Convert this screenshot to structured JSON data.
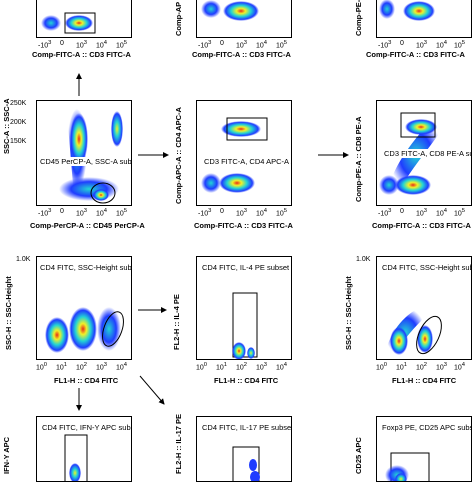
{
  "colors": {
    "density_low": "#1f3cff",
    "density_mid": "#22d4d4",
    "density_high": "#f1f127",
    "density_peak": "#e82a1a",
    "gate": "#000000"
  },
  "top_row": {
    "left": {
      "xlabel": "Comp-FITC-A :: CD3 FITC-A",
      "ylabel": "",
      "xticks": [
        "-10",
        "0",
        "10",
        "10",
        "10"
      ],
      "xtick_exps": [
        "3",
        "",
        "3",
        "4",
        "5"
      ]
    },
    "middle": {
      "xlabel": "Comp-FITC-A :: CD3 FITC-A",
      "ylabel": "Comp-AP",
      "xticks": [
        "-10",
        "0",
        "10",
        "10",
        "10"
      ],
      "xtick_exps": [
        "3",
        "",
        "3",
        "4",
        "5"
      ]
    },
    "right": {
      "xlabel": "Comp-FITC-A :: CD3 FITC-A",
      "ylabel": "Comp-PE-A",
      "xticks": [
        "-10",
        "0",
        "10",
        "10",
        "10"
      ],
      "xtick_exps": [
        "3",
        "",
        "3",
        "4",
        "5"
      ]
    }
  },
  "row2": {
    "left": {
      "subset": "CD45 PerCP-A, SSC-A subset",
      "xlabel": "Comp-PerCP-A :: CD45 PerCP-A",
      "ylabel": "SSC-A :: SSC-A",
      "yticks": [
        "250K",
        "200K",
        "150K",
        "100K",
        "50K",
        "0"
      ],
      "xticks": [
        "-10",
        "0",
        "10",
        "10",
        "10"
      ],
      "xtick_exps": [
        "3",
        "",
        "3",
        "4",
        "5"
      ]
    },
    "middle": {
      "subset": "CD3 FITC-A, CD4 APC-A subset",
      "xlabel": "Comp-FITC-A :: CD3 FITC-A",
      "ylabel": "Comp-APC-A :: CD4 APC-A",
      "xticks": [
        "-10",
        "0",
        "10",
        "10",
        "10"
      ],
      "xtick_exps": [
        "3",
        "",
        "3",
        "4",
        "5"
      ]
    },
    "right": {
      "subset": "CD3 FITC-A, CD8 PE-A subset",
      "xlabel": "Comp-FITC-A :: CD3 FITC-A",
      "ylabel": "Comp-PE-A :: CD8 PE-A",
      "xticks": [
        "-10",
        "0",
        "10",
        "10",
        "10"
      ],
      "xtick_exps": [
        "3",
        "",
        "3",
        "4",
        "5"
      ]
    }
  },
  "row3": {
    "left": {
      "subset": "CD4 FITC, SSC-Height subset",
      "xlabel": "FL1-H :: CD4 FITC",
      "ylabel": "SSC-H :: SSC-Height",
      "ytop": "1.0K",
      "xticks": [
        "10",
        "10",
        "10",
        "10",
        "10"
      ],
      "xtick_exps": [
        "0",
        "1",
        "2",
        "3",
        "4"
      ]
    },
    "middle": {
      "subset": "CD4 FITC, IL-4 PE subset",
      "xlabel": "FL1-H :: CD4 FITC",
      "ylabel": "FL2-H :: IL-4 PE",
      "xticks": [
        "10",
        "10",
        "10",
        "10",
        "10"
      ],
      "xtick_exps": [
        "0",
        "1",
        "2",
        "3",
        "4"
      ]
    },
    "right": {
      "subset": "CD4 FITC, SSC-Height subset",
      "xlabel": "FL1-H :: CD4 FITC",
      "ylabel": "SSC-H :: SSC-Height",
      "ytop": "1.0K",
      "xticks": [
        "10",
        "10",
        "10",
        "10",
        "10"
      ],
      "xtick_exps": [
        "0",
        "1",
        "2",
        "3",
        "4"
      ]
    }
  },
  "row4": {
    "left": {
      "subset": "CD4 FITC, IFN-Y APC subset",
      "ylabel": "IFN-Y APC"
    },
    "middle": {
      "subset": "CD4 FITC, IL-17 PE subset",
      "ylabel": "FL2-H :: IL-17 PE"
    },
    "right": {
      "subset": "Foxp3 PE, CD25 APC subset",
      "ylabel": "CD25 APC"
    }
  }
}
